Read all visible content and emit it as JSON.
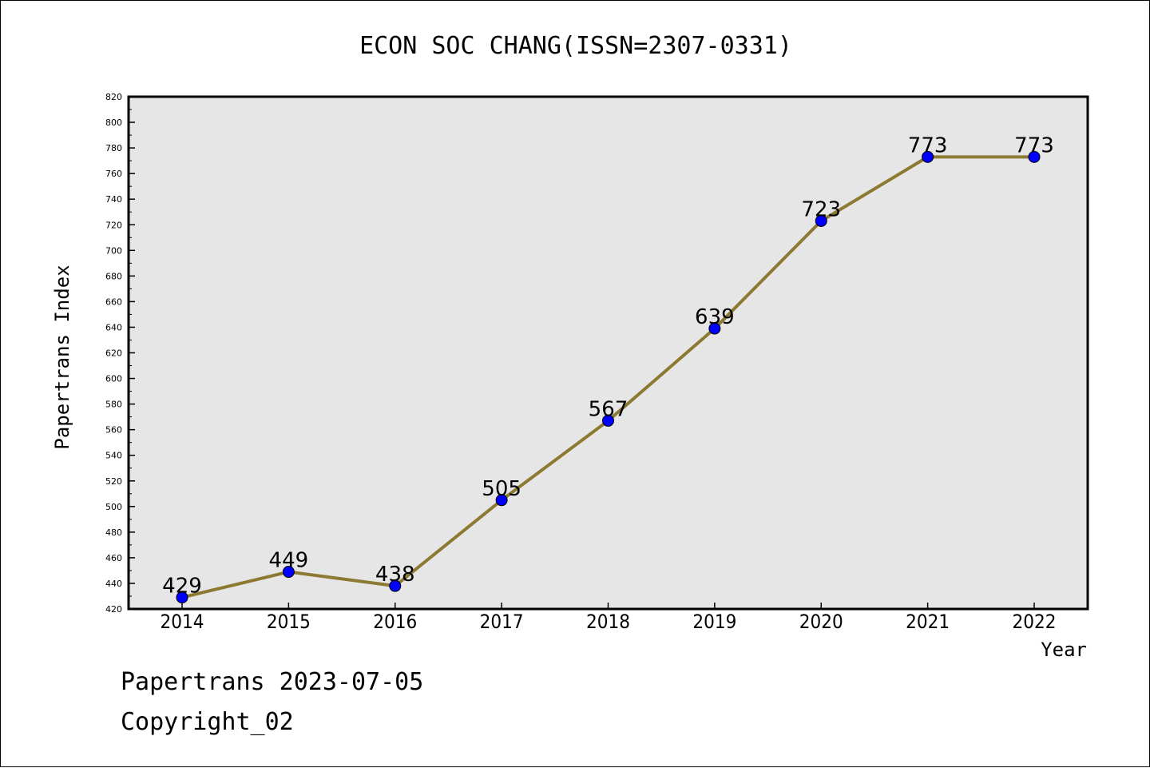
{
  "chart_data": {
    "type": "line",
    "title": "ECON SOC CHANG(ISSN=2307-0331)",
    "xlabel": "Year",
    "ylabel": "Papertrans Index",
    "categories": [
      "2014",
      "2015",
      "2016",
      "2017",
      "2018",
      "2019",
      "2020",
      "2021",
      "2022"
    ],
    "series": [
      {
        "values": [
          429,
          449,
          438,
          505,
          567,
          639,
          723,
          773,
          773
        ]
      }
    ],
    "data_labels": [
      "429",
      "449",
      "438",
      "505",
      "567",
      "639",
      "723",
      "773",
      "773"
    ],
    "ylim": [
      420,
      820
    ],
    "y_ticks": [
      "420",
      "440",
      "460",
      "480",
      "500",
      "520",
      "540",
      "560",
      "580",
      "600",
      "620",
      "640",
      "660",
      "680",
      "700",
      "720",
      "740",
      "760",
      "780",
      "800",
      "820"
    ],
    "grid": false,
    "legend": "none",
    "colors": {
      "line": "#8c7a32",
      "marker": "#0000ff",
      "plot_background": "#e6e6e6"
    }
  },
  "footer": {
    "line1": "Papertrans 2023-07-05",
    "line2": "Copyright_02"
  }
}
